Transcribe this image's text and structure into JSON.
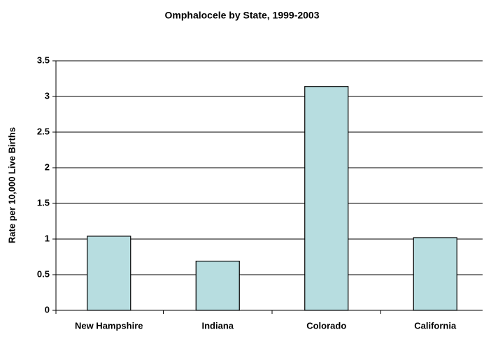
{
  "chart_data": {
    "type": "bar",
    "title": "Omphalocele by State, 1999-2003",
    "y_label": "Rate per 10,000 Live Births",
    "categories": [
      "New Hampshire",
      "Indiana",
      "Colorado",
      "California"
    ],
    "values": [
      1.04,
      0.69,
      3.14,
      1.02
    ],
    "color": "#b7dde0",
    "ylim": [
      0,
      3.5
    ],
    "yticks": [
      0,
      0.5,
      1,
      1.5,
      2,
      2.5,
      3,
      3.5
    ],
    "grid": true
  }
}
